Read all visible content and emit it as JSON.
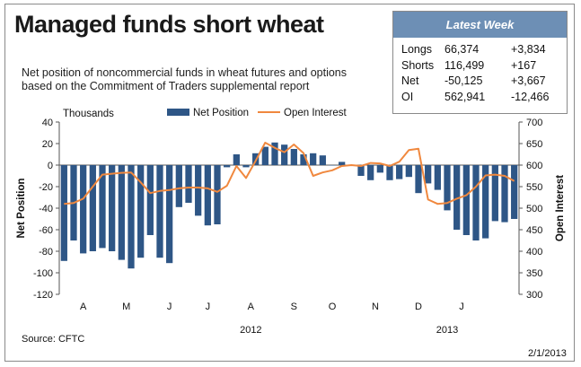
{
  "title": "Managed funds short wheat",
  "subtitle": "Net position of noncommercial funds in wheat futures and options based on the Commitment of Traders supplemental report",
  "latest_week": {
    "header": "Latest Week",
    "rows": [
      {
        "label": "Longs",
        "value": "66,374",
        "change": "+3,834"
      },
      {
        "label": "Shorts",
        "value": "116,499",
        "change": "+167"
      },
      {
        "label": "Net",
        "value": "-50,125",
        "change": "+3,667"
      },
      {
        "label": "OI",
        "value": "562,941",
        "change": "-12,466"
      }
    ]
  },
  "source": "Source: CFTC",
  "date": "2/1/2013",
  "colors": {
    "bar": "#2e5686",
    "line": "#f0883e",
    "header": "#6d8fb5"
  },
  "chart_data": {
    "type": "bar",
    "title": "",
    "left_axis_label": "Thousands",
    "ylabel": "Net Position",
    "y2label": "Open Interest",
    "legend": {
      "placement": "top",
      "entries": [
        "Net Position",
        "Open Interest"
      ]
    },
    "ylim": [
      -120,
      40
    ],
    "y2lim": [
      300,
      700
    ],
    "yticks": [
      40,
      20,
      0,
      -20,
      -40,
      -60,
      -80,
      -100,
      -120
    ],
    "y2ticks": [
      700,
      650,
      600,
      550,
      500,
      450,
      400,
      350,
      300
    ],
    "month_labels": [
      "A",
      "M",
      "J",
      "J",
      "A",
      "S",
      "O",
      "N",
      "D",
      "J"
    ],
    "year_labels": [
      "2012",
      "2013"
    ],
    "grid": false,
    "series": [
      {
        "name": "Net Position",
        "type": "bar",
        "axis": "left",
        "values": [
          -89,
          -70,
          -82,
          -80,
          -77,
          -80,
          -88,
          -96,
          -86,
          -65,
          -86,
          -91,
          -39,
          -35,
          -47,
          -56,
          -55,
          -2,
          10,
          -2,
          11,
          17,
          21,
          19,
          15,
          10,
          11,
          9,
          0,
          3,
          0,
          -10,
          -14,
          -7,
          -14,
          -13,
          -11,
          -26,
          -17,
          -23,
          -42,
          -60,
          -65,
          -70,
          -68,
          -52,
          -53,
          -50
        ]
      },
      {
        "name": "Open Interest",
        "type": "line",
        "axis": "right",
        "values": [
          510,
          512,
          522,
          550,
          578,
          580,
          582,
          583,
          560,
          535,
          540,
          542,
          546,
          548,
          548,
          546,
          538,
          552,
          598,
          570,
          610,
          652,
          640,
          630,
          648,
          628,
          575,
          583,
          588,
          598,
          600,
          598,
          605,
          604,
          598,
          608,
          635,
          638,
          520,
          510,
          512,
          522,
          530,
          550,
          576,
          578,
          575,
          563
        ]
      }
    ]
  }
}
